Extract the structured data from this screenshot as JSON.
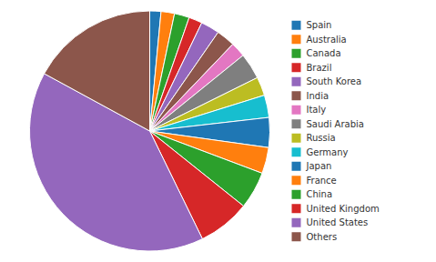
{
  "chart_data": {
    "type": "pie",
    "categories": [
      "Spain",
      "Australia",
      "Canada",
      "Brazil",
      "South Korea",
      "India",
      "Italy",
      "Saudi Arabia",
      "Russia",
      "Germany",
      "Japan",
      "France",
      "China",
      "United Kingdom",
      "United States",
      "Others"
    ],
    "values": [
      1.5,
      1.8,
      2.0,
      1.8,
      2.5,
      2.5,
      2.0,
      3.5,
      2.5,
      3.0,
      4.0,
      3.5,
      5.0,
      7.0,
      40.0,
      17.0
    ],
    "legend": "right"
  }
}
